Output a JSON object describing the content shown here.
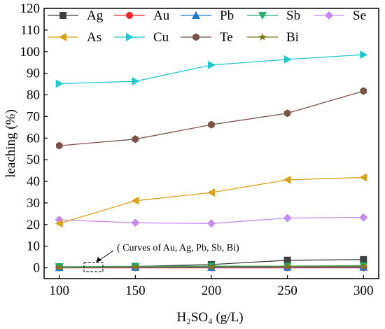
{
  "chart_data": {
    "type": "line",
    "xlabel": "H₂SO₄ (g/L)",
    "ylabel": "leaching (%)",
    "x": [
      100,
      150,
      200,
      250,
      300
    ],
    "xlim": [
      90,
      310
    ],
    "ylim": [
      -5,
      120
    ],
    "x_ticks": [
      "100",
      "150",
      "200",
      "250",
      "300"
    ],
    "y_ticks": [
      "0",
      "10",
      "20",
      "30",
      "40",
      "50",
      "60",
      "70",
      "80",
      "90",
      "100",
      "110",
      "120"
    ],
    "grid": false,
    "legend_placement": "top",
    "series": [
      {
        "name": "Ag",
        "color": "#3f3f3f",
        "marker": "square",
        "values": [
          0.3,
          0.6,
          1.5,
          3.5,
          3.8
        ]
      },
      {
        "name": "Au",
        "color": "#e8262b",
        "marker": "circle",
        "values": [
          0.0,
          0.0,
          0.0,
          0.0,
          0.0
        ]
      },
      {
        "name": "Pb",
        "color": "#1f77d0",
        "marker": "triangle-up",
        "values": [
          0.1,
          0.2,
          0.2,
          0.3,
          0.3
        ]
      },
      {
        "name": "Sb",
        "color": "#2ca86e",
        "marker": "triangle-down",
        "values": [
          0.5,
          0.7,
          0.8,
          0.8,
          1.0
        ]
      },
      {
        "name": "Se",
        "color": "#c58cf0",
        "marker": "diamond",
        "values": [
          22.2,
          20.8,
          20.5,
          23.0,
          23.3
        ]
      },
      {
        "name": "As",
        "color": "#d8a21b",
        "marker": "triangle-left",
        "values": [
          20.5,
          31.0,
          34.8,
          40.7,
          41.8
        ]
      },
      {
        "name": "Cu",
        "color": "#22c7cf",
        "marker": "triangle-right",
        "values": [
          85.2,
          86.3,
          93.8,
          96.4,
          98.6
        ]
      },
      {
        "name": "Te",
        "color": "#7a514a",
        "marker": "hexagon",
        "values": [
          56.5,
          59.5,
          66.2,
          71.5,
          81.8
        ]
      },
      {
        "name": "Bi",
        "color": "#7a7a1a",
        "marker": "star",
        "values": [
          0.2,
          0.4,
          0.5,
          0.6,
          0.7
        ]
      }
    ],
    "annotation": "( Curves of Au, Ag, Pb, Sb, Bi)"
  }
}
